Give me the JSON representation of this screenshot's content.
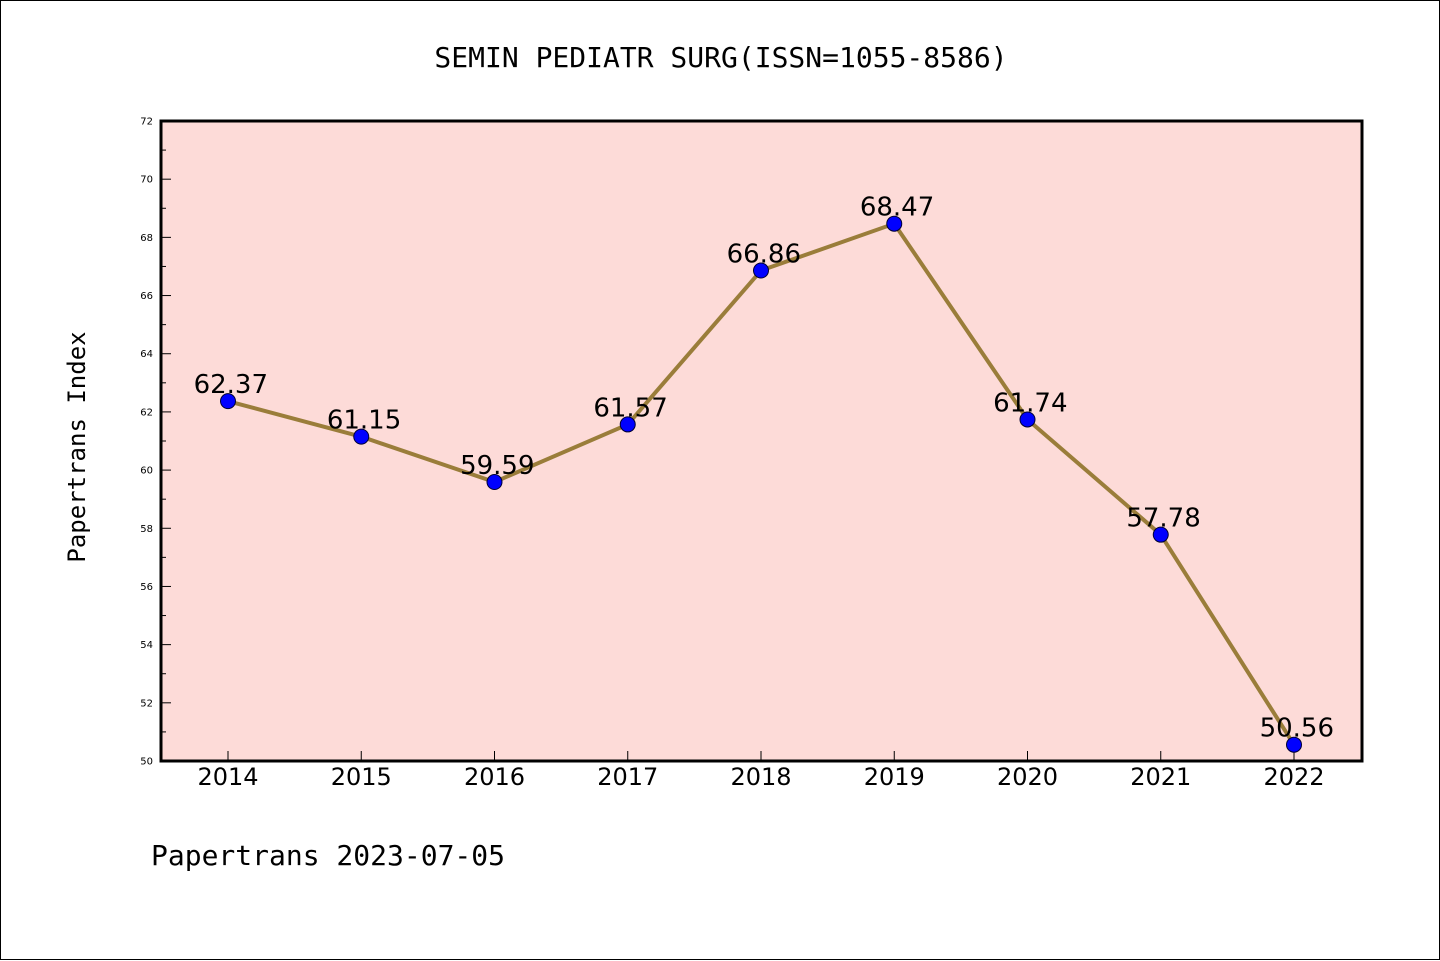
{
  "footer": "Papertrans 2023-07-05",
  "colors": {
    "plot_background": "#fddbd8",
    "line": "#9a7d3a",
    "marker": "#0000ff"
  },
  "chart_data": {
    "type": "line",
    "title": "SEMIN PEDIATR SURG(ISSN=1055-8586)",
    "xlabel": "",
    "ylabel": "Papertrans Index",
    "x": [
      "2014",
      "2015",
      "2016",
      "2017",
      "2018",
      "2019",
      "2020",
      "2021",
      "2022"
    ],
    "series": [
      {
        "values": [
          62.37,
          61.15,
          59.59,
          61.57,
          66.86,
          68.47,
          61.74,
          57.78,
          50.56
        ]
      }
    ],
    "data_labels": [
      "62.37",
      "61.15",
      "59.59",
      "61.57",
      "66.86",
      "68.47",
      "61.74",
      "57.78",
      "50.56"
    ],
    "ylim": [
      50,
      72
    ],
    "yticks": [
      50,
      52,
      54,
      56,
      58,
      60,
      62,
      64,
      66,
      68,
      70,
      72
    ],
    "ytick_labels": [
      "50",
      "52",
      "54",
      "56",
      "58",
      "60",
      "62",
      "64",
      "66",
      "68",
      "70",
      "72"
    ],
    "grid": false,
    "legend": "none"
  }
}
